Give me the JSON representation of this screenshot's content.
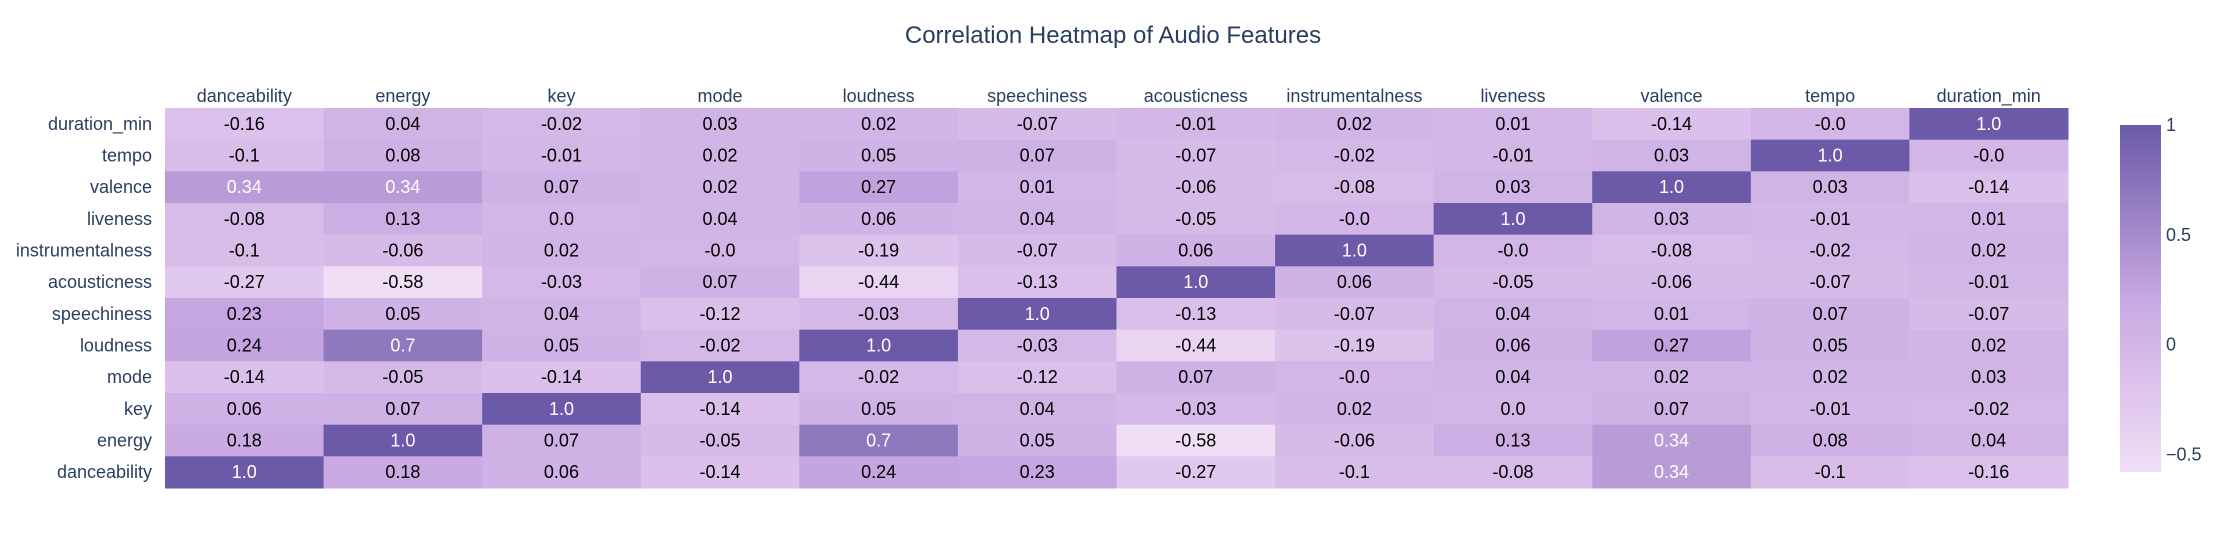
{
  "chart_data": {
    "type": "heatmap",
    "title": "Correlation Heatmap of Audio Features",
    "x_labels": [
      "danceability",
      "energy",
      "key",
      "mode",
      "loudness",
      "speechiness",
      "acousticness",
      "instrumentalness",
      "liveness",
      "valence",
      "tempo",
      "duration_min"
    ],
    "y_labels_top_to_bottom": [
      "duration_min",
      "tempo",
      "valence",
      "liveness",
      "instrumentalness",
      "acousticness",
      "speechiness",
      "loudness",
      "mode",
      "key",
      "energy",
      "danceability"
    ],
    "values": [
      [
        "-0.16",
        "0.04",
        "-0.02",
        "0.03",
        "0.02",
        "-0.07",
        "-0.01",
        "0.02",
        "0.01",
        "-0.14",
        "-0.0",
        "1.0"
      ],
      [
        "-0.1",
        "0.08",
        "-0.01",
        "0.02",
        "0.05",
        "0.07",
        "-0.07",
        "-0.02",
        "-0.01",
        "0.03",
        "1.0",
        "-0.0"
      ],
      [
        "0.34",
        "0.34",
        "0.07",
        "0.02",
        "0.27",
        "0.01",
        "-0.06",
        "-0.08",
        "0.03",
        "1.0",
        "0.03",
        "-0.14"
      ],
      [
        "-0.08",
        "0.13",
        "0.0",
        "0.04",
        "0.06",
        "0.04",
        "-0.05",
        "-0.0",
        "1.0",
        "0.03",
        "-0.01",
        "0.01"
      ],
      [
        "-0.1",
        "-0.06",
        "0.02",
        "-0.0",
        "-0.19",
        "-0.07",
        "0.06",
        "1.0",
        "-0.0",
        "-0.08",
        "-0.02",
        "0.02"
      ],
      [
        "-0.27",
        "-0.58",
        "-0.03",
        "0.07",
        "-0.44",
        "-0.13",
        "1.0",
        "0.06",
        "-0.05",
        "-0.06",
        "-0.07",
        "-0.01"
      ],
      [
        "0.23",
        "0.05",
        "0.04",
        "-0.12",
        "-0.03",
        "1.0",
        "-0.13",
        "-0.07",
        "0.04",
        "0.01",
        "0.07",
        "-0.07"
      ],
      [
        "0.24",
        "0.7",
        "0.05",
        "-0.02",
        "1.0",
        "-0.03",
        "-0.44",
        "-0.19",
        "0.06",
        "0.27",
        "0.05",
        "0.02"
      ],
      [
        "-0.14",
        "-0.05",
        "-0.14",
        "1.0",
        "-0.02",
        "-0.12",
        "0.07",
        "-0.0",
        "0.04",
        "0.02",
        "0.02",
        "0.03"
      ],
      [
        "0.06",
        "0.07",
        "1.0",
        "-0.14",
        "0.05",
        "0.04",
        "-0.03",
        "0.02",
        "0.0",
        "0.07",
        "-0.01",
        "-0.02"
      ],
      [
        "0.18",
        "1.0",
        "0.07",
        "-0.05",
        "0.7",
        "0.05",
        "-0.58",
        "-0.06",
        "0.13",
        "0.34",
        "0.08",
        "0.04"
      ],
      [
        "1.0",
        "0.18",
        "0.06",
        "-0.14",
        "0.24",
        "0.23",
        "-0.27",
        "-0.1",
        "-0.08",
        "0.34",
        "-0.1",
        "-0.16"
      ]
    ],
    "zlim": [
      -0.58,
      1.0
    ],
    "colorscale": [
      "#f0def5",
      "#6a5aa8"
    ],
    "colorbar_ticks": [
      "1",
      "0.5",
      "0",
      "−0.5"
    ],
    "colorbar_tick_values": [
      1,
      0.5,
      0,
      -0.5
    ],
    "x_axis_side": "top",
    "grid": false,
    "legend": "colorbar-right"
  }
}
